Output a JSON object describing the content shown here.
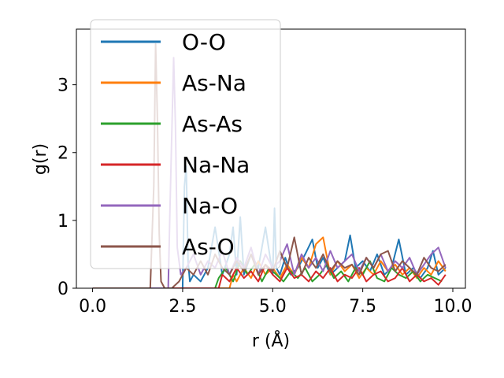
{
  "chart_data": {
    "type": "line",
    "xlabel": "r (Å)",
    "ylabel": "g(r)",
    "xlim": [
      -0.45,
      10.35
    ],
    "ylim": [
      0,
      3.82
    ],
    "xticks": [
      0.0,
      2.5,
      5.0,
      7.5,
      10.0
    ],
    "xtick_labels": [
      "0.0",
      "2.5",
      "5.0",
      "7.5",
      "10.0"
    ],
    "yticks": [
      0,
      1,
      2,
      3
    ],
    "ytick_labels": [
      "0",
      "1",
      "2",
      "3"
    ],
    "grid": false,
    "legend_position": "upper-left",
    "series": [
      {
        "name": "O-O",
        "color": "#1f77b4",
        "x": [
          0.0,
          2.5,
          2.55,
          2.6,
          2.65,
          2.7,
          2.8,
          3.0,
          3.2,
          3.4,
          3.6,
          3.8,
          3.9,
          4.0,
          4.1,
          4.2,
          4.4,
          4.6,
          4.8,
          5.0,
          5.05,
          5.1,
          5.2,
          5.35,
          5.5,
          5.7,
          5.9,
          6.1,
          6.25,
          6.4,
          6.6,
          6.8,
          7.0,
          7.15,
          7.3,
          7.5,
          7.7,
          7.9,
          8.1,
          8.3,
          8.5,
          8.7,
          8.9,
          9.1,
          9.3,
          9.45,
          9.6,
          9.8
        ],
        "y": [
          0.0,
          0.0,
          1.5,
          1.8,
          0.4,
          0.1,
          0.2,
          0.1,
          0.3,
          0.9,
          0.2,
          0.5,
          0.9,
          0.2,
          1.05,
          0.2,
          0.5,
          0.3,
          0.9,
          0.2,
          1.18,
          0.3,
          0.2,
          0.45,
          0.2,
          0.3,
          0.5,
          0.72,
          0.3,
          0.45,
          0.2,
          0.3,
          0.4,
          0.78,
          0.3,
          0.4,
          0.25,
          0.5,
          0.2,
          0.3,
          0.72,
          0.2,
          0.3,
          0.15,
          0.3,
          0.55,
          0.2,
          0.3
        ]
      },
      {
        "name": "As-Na",
        "color": "#ff7f0e",
        "x": [
          0.0,
          3.8,
          3.9,
          4.0,
          4.2,
          4.4,
          4.6,
          4.8,
          5.0,
          5.2,
          5.4,
          5.6,
          5.8,
          6.0,
          6.2,
          6.4,
          6.6,
          6.8,
          7.0,
          7.2,
          7.4,
          7.6,
          7.8,
          8.0,
          8.2,
          8.4,
          8.6,
          8.8,
          9.0,
          9.2,
          9.4,
          9.6,
          9.8
        ],
        "y": [
          0.0,
          0.0,
          0.2,
          0.1,
          0.3,
          0.15,
          0.4,
          0.2,
          0.3,
          0.15,
          0.35,
          0.2,
          0.45,
          0.3,
          0.65,
          0.75,
          0.2,
          0.4,
          0.25,
          0.35,
          0.15,
          0.3,
          0.2,
          0.4,
          0.25,
          0.35,
          0.2,
          0.3,
          0.15,
          0.3,
          0.2,
          0.4,
          0.25
        ]
      },
      {
        "name": "As-As",
        "color": "#2ca02c",
        "x": [
          0.0,
          3.4,
          3.5,
          3.7,
          3.9,
          4.1,
          4.3,
          4.5,
          4.7,
          4.9,
          5.1,
          5.3,
          5.5,
          5.7,
          5.9,
          6.1,
          6.3,
          6.5,
          6.7,
          6.9,
          7.1,
          7.3,
          7.5,
          7.7,
          7.9,
          8.1,
          8.3,
          8.5,
          8.7,
          8.9,
          9.1,
          9.3,
          9.5,
          9.7
        ],
        "y": [
          0.0,
          0.0,
          0.15,
          0.3,
          0.1,
          0.4,
          0.2,
          0.35,
          0.1,
          0.3,
          0.2,
          0.1,
          0.25,
          0.15,
          0.3,
          0.1,
          0.2,
          0.35,
          0.15,
          0.25,
          0.1,
          0.3,
          0.2,
          0.4,
          0.15,
          0.1,
          0.3,
          0.2,
          0.15,
          0.25,
          0.1,
          0.2,
          0.15,
          0.1
        ]
      },
      {
        "name": "Na-Na",
        "color": "#d62728",
        "x": [
          0.0,
          3.5,
          3.6,
          3.8,
          4.0,
          4.2,
          4.4,
          4.6,
          4.8,
          5.0,
          5.2,
          5.4,
          5.6,
          5.8,
          6.0,
          6.2,
          6.4,
          6.6,
          6.8,
          7.0,
          7.2,
          7.4,
          7.6,
          7.8,
          8.0,
          8.2,
          8.4,
          8.6,
          8.8,
          9.0,
          9.2,
          9.4,
          9.6,
          9.8
        ],
        "y": [
          0.0,
          0.0,
          0.2,
          0.1,
          0.3,
          0.15,
          0.25,
          0.1,
          0.35,
          0.2,
          0.1,
          0.3,
          0.15,
          0.2,
          0.1,
          0.25,
          0.15,
          0.3,
          0.1,
          0.2,
          0.15,
          0.3,
          0.1,
          0.2,
          0.25,
          0.1,
          0.15,
          0.3,
          0.1,
          0.2,
          0.1,
          0.15,
          0.05,
          0.2
        ]
      },
      {
        "name": "Na-O",
        "color": "#9467bd",
        "x": [
          0.0,
          2.1,
          2.15,
          2.25,
          2.3,
          2.35,
          2.45,
          2.6,
          2.8,
          3.0,
          3.2,
          3.4,
          3.6,
          3.8,
          4.0,
          4.2,
          4.4,
          4.6,
          4.8,
          5.0,
          5.2,
          5.4,
          5.6,
          5.8,
          6.0,
          6.2,
          6.4,
          6.6,
          6.8,
          7.0,
          7.2,
          7.4,
          7.6,
          7.8,
          8.0,
          8.2,
          8.4,
          8.6,
          8.8,
          9.0,
          9.2,
          9.4,
          9.6,
          9.8
        ],
        "y": [
          0.0,
          0.0,
          1.2,
          3.4,
          2.4,
          0.6,
          0.2,
          0.3,
          0.5,
          0.2,
          0.4,
          0.3,
          0.55,
          0.2,
          0.45,
          0.3,
          0.6,
          0.2,
          0.5,
          0.3,
          0.4,
          0.65,
          0.2,
          0.5,
          0.3,
          0.45,
          0.25,
          0.55,
          0.3,
          0.4,
          0.5,
          0.25,
          0.45,
          0.3,
          0.5,
          0.25,
          0.4,
          0.3,
          0.45,
          0.2,
          0.35,
          0.5,
          0.6,
          0.3
        ]
      },
      {
        "name": "As-O",
        "color": "#8c564b",
        "x": [
          0.0,
          1.6,
          1.7,
          1.75,
          1.8,
          1.85,
          1.9,
          2.0,
          2.2,
          2.4,
          2.6,
          2.8,
          3.0,
          3.2,
          3.4,
          3.6,
          3.8,
          4.0,
          4.2,
          4.4,
          4.6,
          4.8,
          5.0,
          5.2,
          5.4,
          5.6,
          5.8,
          6.0,
          6.2,
          6.4,
          6.6,
          6.8,
          7.0,
          7.2,
          7.4,
          7.6,
          7.8,
          8.0,
          8.2,
          8.4,
          8.6,
          8.8,
          9.0,
          9.2,
          9.4,
          9.6,
          9.8
        ],
        "y": [
          0.0,
          0.0,
          1.5,
          3.6,
          2.5,
          0.8,
          0.1,
          0.0,
          0.0,
          0.1,
          0.3,
          0.2,
          0.4,
          0.2,
          0.5,
          0.3,
          0.2,
          0.4,
          0.25,
          0.5,
          0.2,
          0.35,
          0.25,
          0.55,
          0.3,
          0.75,
          0.2,
          0.45,
          0.3,
          0.5,
          0.25,
          0.4,
          0.3,
          0.35,
          0.2,
          0.45,
          0.3,
          0.5,
          0.55,
          0.25,
          0.4,
          0.3,
          0.2,
          0.45,
          0.3,
          0.25,
          0.35
        ]
      }
    ]
  }
}
